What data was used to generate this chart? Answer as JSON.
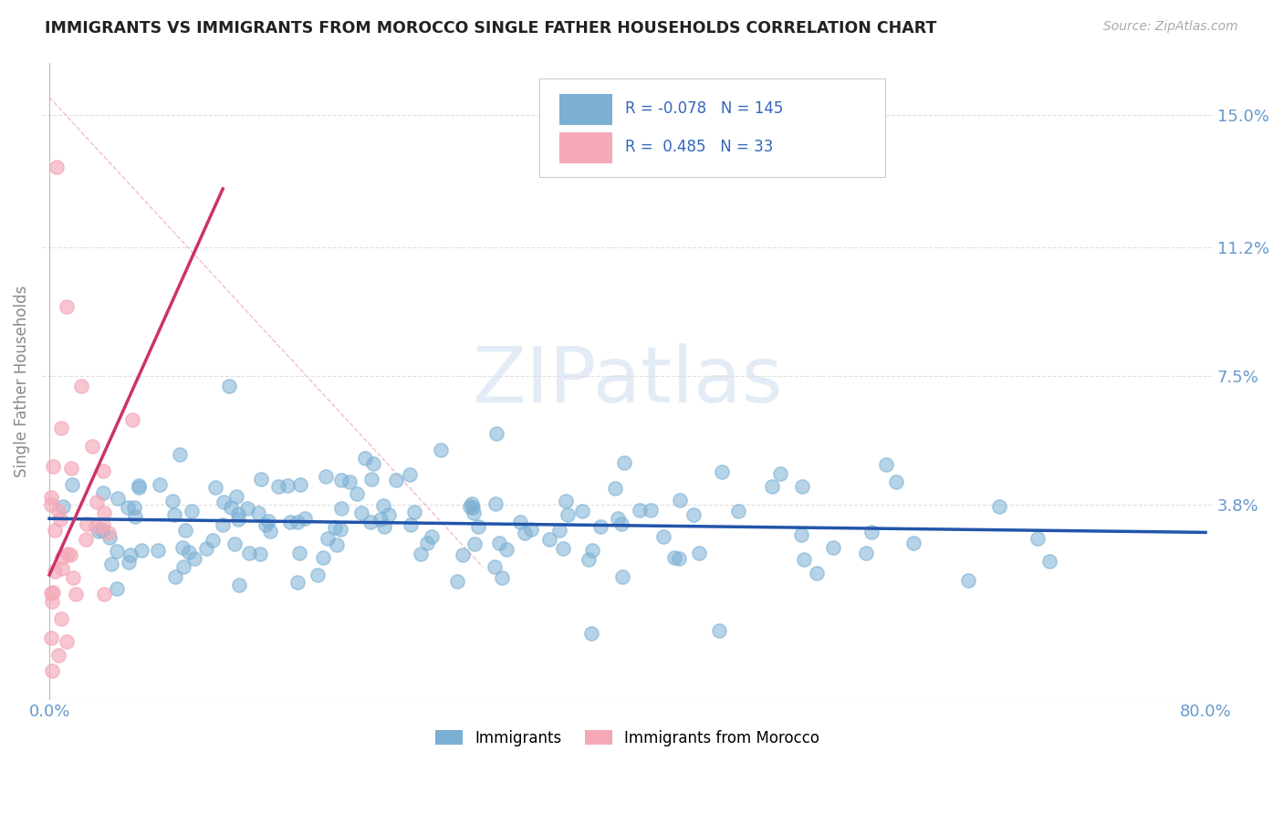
{
  "title": "IMMIGRANTS VS IMMIGRANTS FROM MOROCCO SINGLE FATHER HOUSEHOLDS CORRELATION CHART",
  "source": "Source: ZipAtlas.com",
  "ylabel": "Single Father Households",
  "xlim": [
    0.0,
    0.8
  ],
  "ylim": [
    -0.018,
    0.165
  ],
  "ytick_positions": [
    0.038,
    0.075,
    0.112,
    0.15
  ],
  "ytick_labels": [
    "3.8%",
    "7.5%",
    "11.2%",
    "15.0%"
  ],
  "xtick_positions": [
    0.0,
    0.1,
    0.2,
    0.3,
    0.4,
    0.5,
    0.6,
    0.7,
    0.8
  ],
  "xtick_labels": [
    "0.0%",
    "",
    "",
    "",
    "",
    "",
    "",
    "",
    "80.0%"
  ],
  "blue_R": -0.078,
  "blue_N": 145,
  "pink_R": 0.485,
  "pink_N": 33,
  "legend_labels": [
    "Immigrants",
    "Immigrants from Morocco"
  ],
  "blue_scatter_color": "#7BAFD4",
  "pink_scatter_color": "#F4A8B8",
  "blue_line_color": "#2255AA",
  "pink_line_color": "#CC3366",
  "pink_dash_color": "#F4A8B8",
  "watermark_text": "ZIPatlas",
  "title_color": "#222222",
  "axis_label_color": "#6699CC",
  "grid_color": "#DDDDDD",
  "background_color": "#FFFFFF",
  "seed": 12345
}
